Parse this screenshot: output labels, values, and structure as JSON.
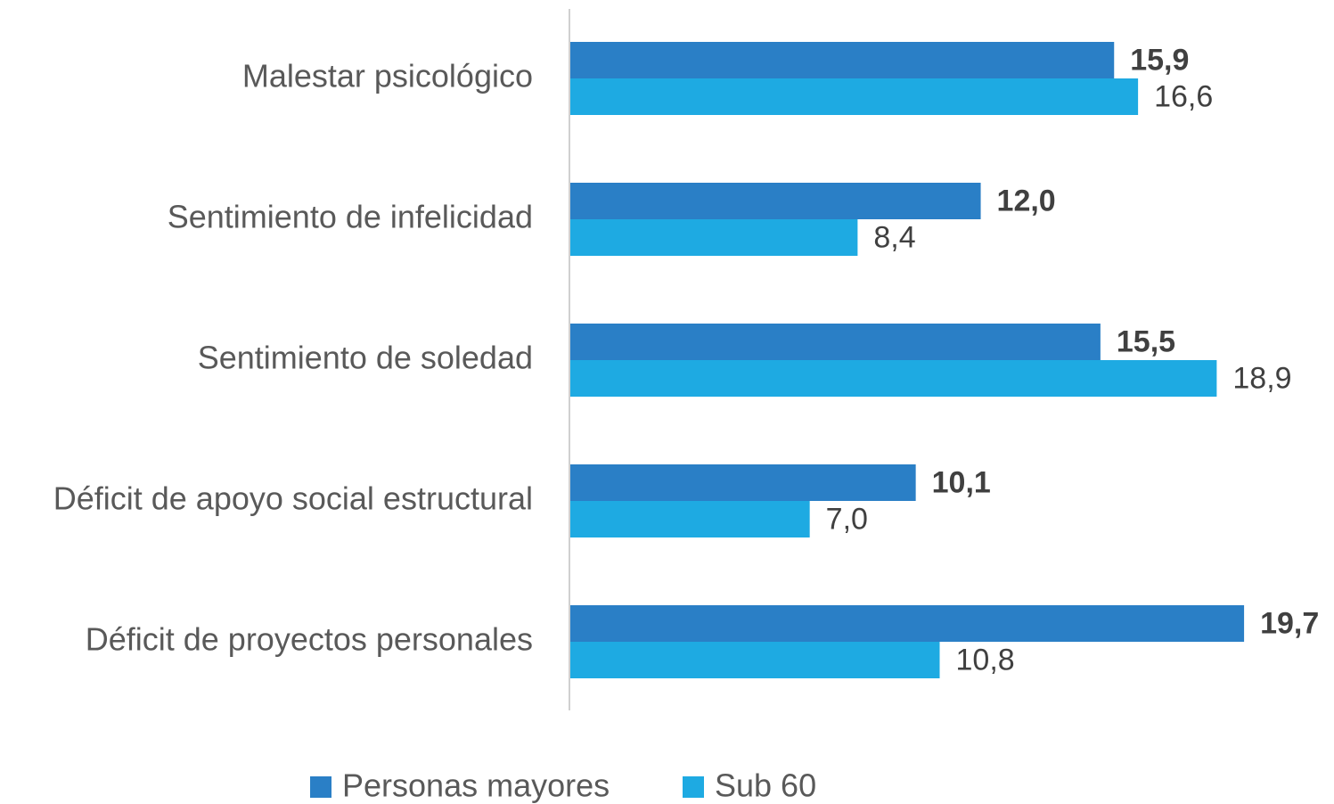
{
  "chart_data": {
    "type": "barh",
    "categories": [
      "Malestar psicológico",
      "Sentimiento de infelicidad",
      "Sentimiento de soledad",
      "Déficit de apoyo social estructural",
      "Déficit de proyectos personales"
    ],
    "series": [
      {
        "name": "Personas mayores",
        "color": "#2a7fc6",
        "values": [
          15.9,
          12.0,
          15.5,
          10.1,
          19.7
        ],
        "value_labels": [
          "15,9",
          "12,0",
          "15,5",
          "10,1",
          "19,7"
        ]
      },
      {
        "name": "Sub 60",
        "color": "#1eaae2",
        "values": [
          16.6,
          8.4,
          18.9,
          7.0,
          10.8
        ],
        "value_labels": [
          "16,6",
          "8,4",
          "18,9",
          "7,0",
          "10,8"
        ]
      }
    ],
    "legend": "bottom"
  }
}
